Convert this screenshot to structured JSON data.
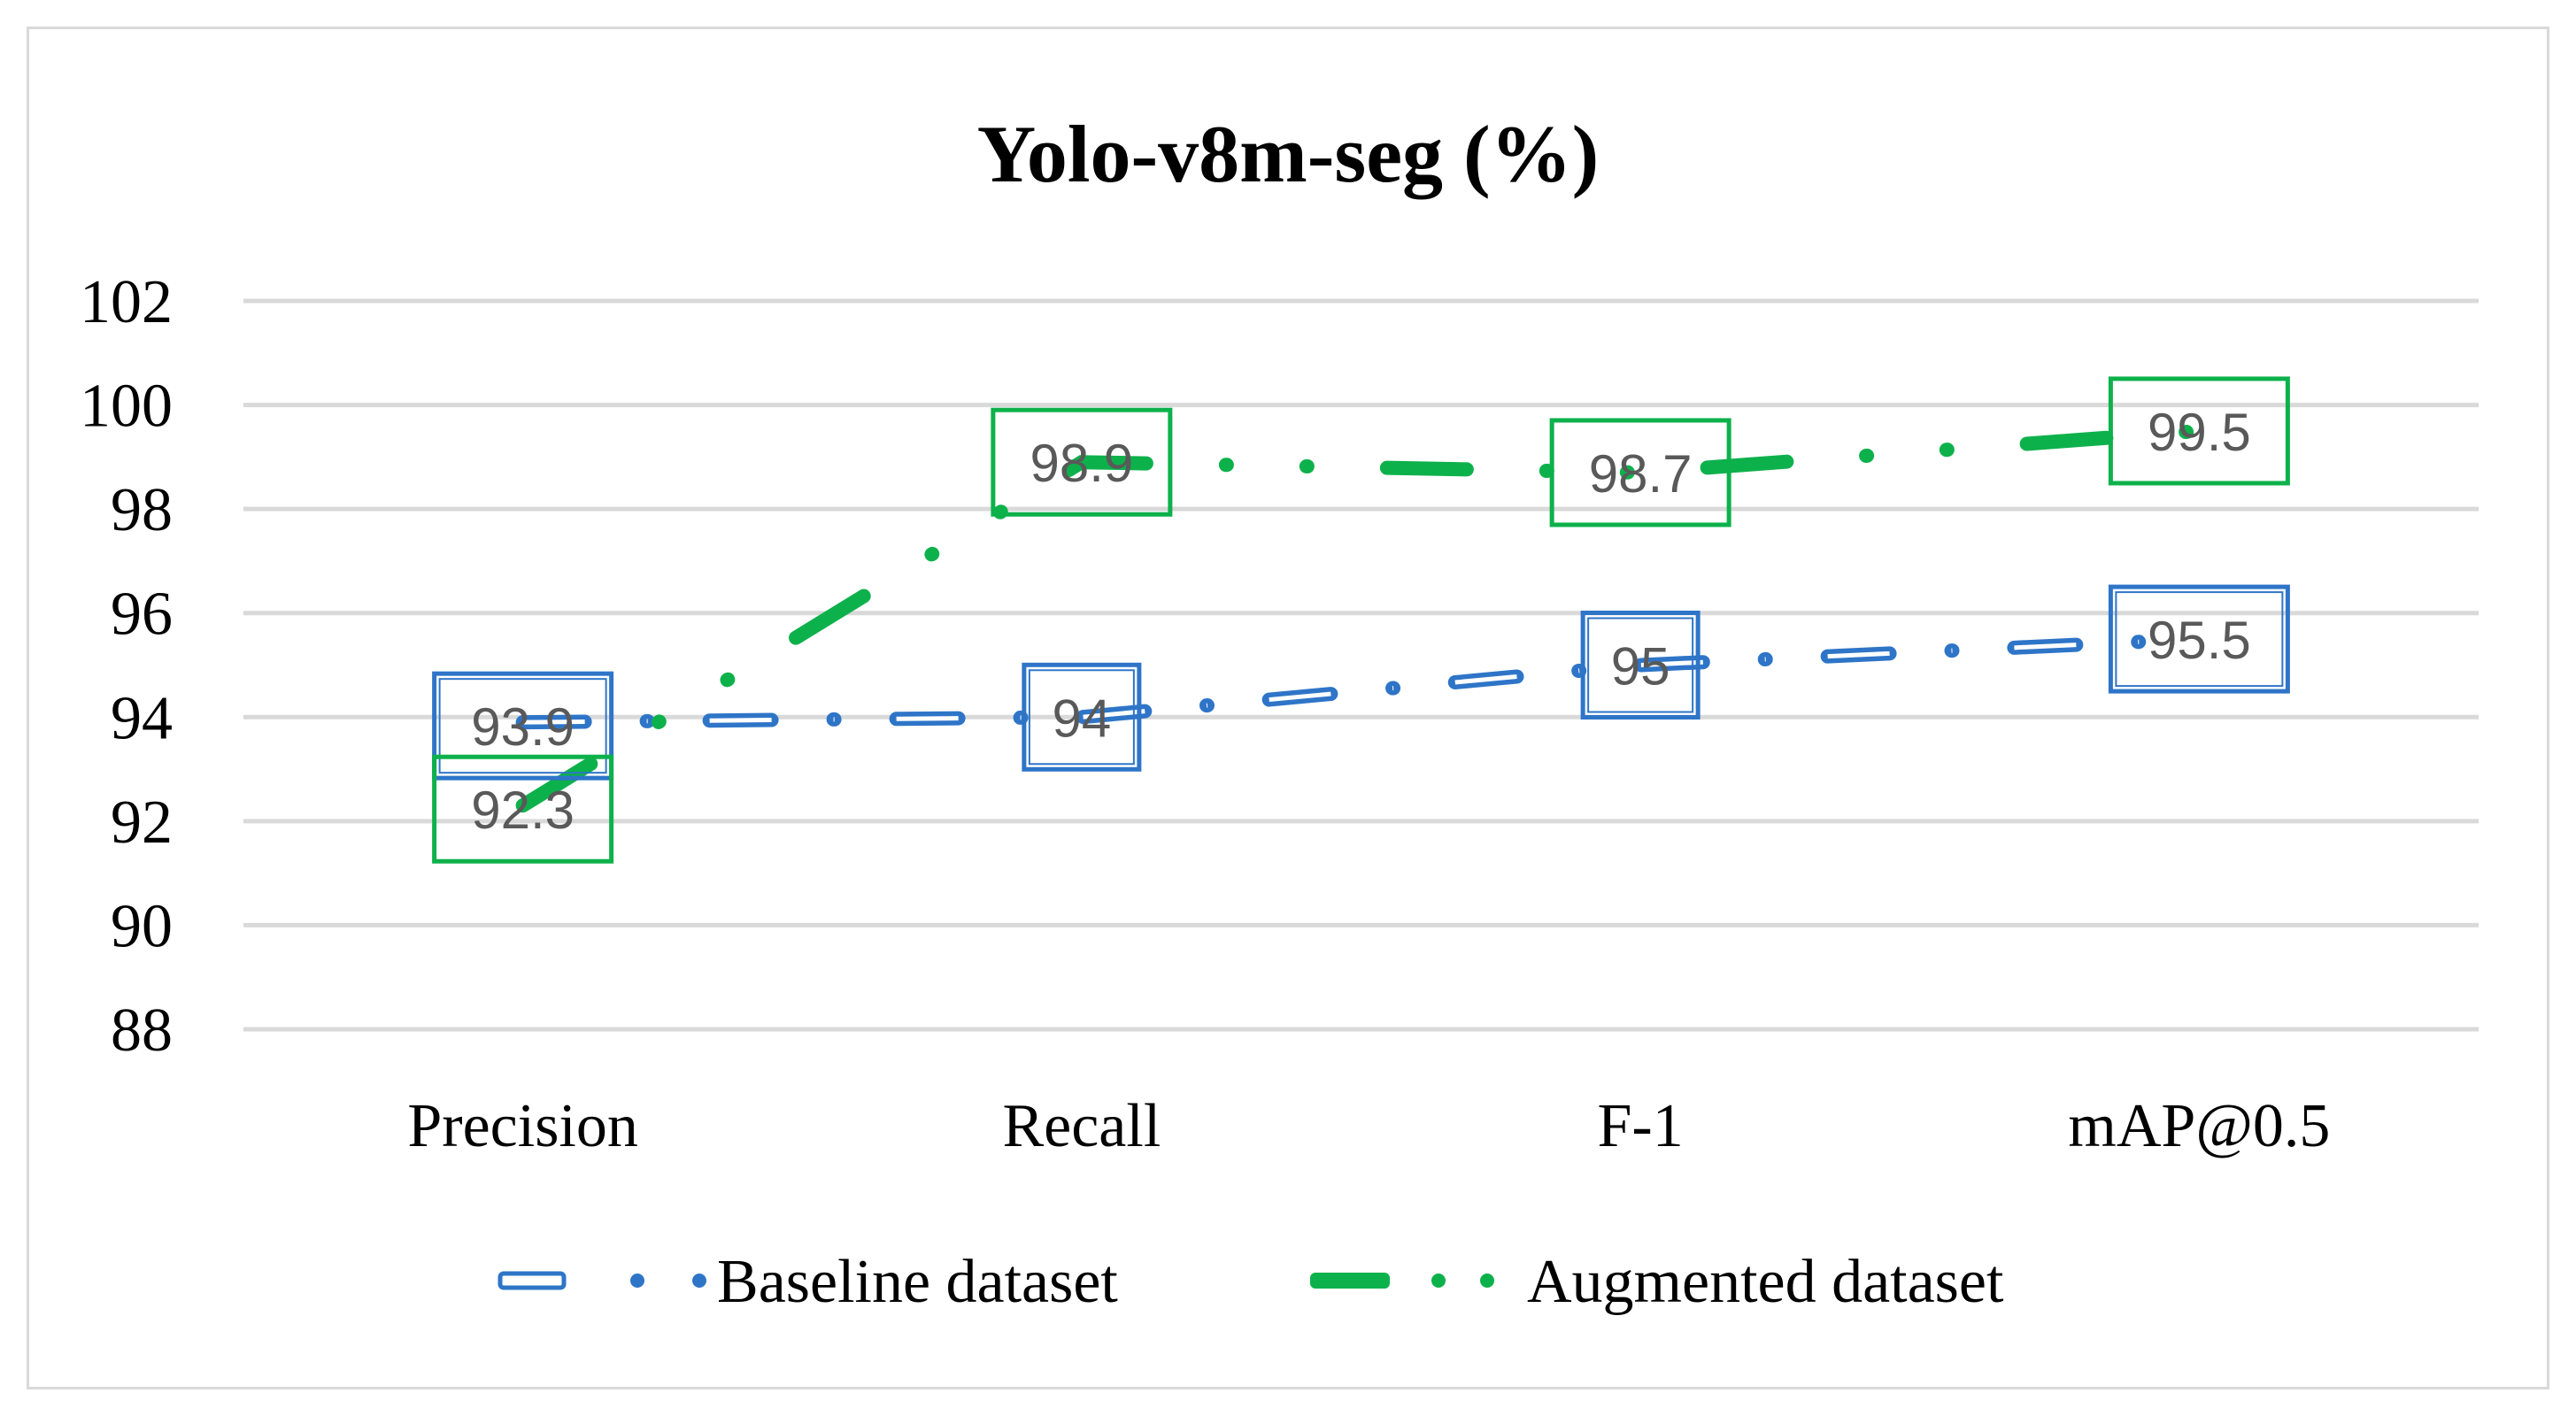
{
  "chart_data": {
    "type": "line",
    "title": "Yolo-v8m-seg (%)",
    "categories": [
      "Precision",
      "Recall",
      "F-1",
      "mAP@0.5"
    ],
    "ylim": [
      88,
      102
    ],
    "yticks": [
      88,
      90,
      92,
      94,
      96,
      98,
      100,
      102
    ],
    "ytick_labels": [
      "88",
      "90",
      "92",
      "94",
      "96",
      "98",
      "100",
      "102"
    ],
    "xlabel": "",
    "ylabel": "",
    "grid": true,
    "legend_position": "bottom",
    "series": [
      {
        "name": "Baseline dataset",
        "values": [
          93.9,
          94,
          95,
          95.5
        ],
        "labels": [
          "93.9",
          "94",
          "95",
          "95.5"
        ],
        "color": "#2e75c8"
      },
      {
        "name": "Augmented dataset",
        "values": [
          92.3,
          98.9,
          98.7,
          99.5
        ],
        "labels": [
          "92.3",
          "98.9",
          "98.7",
          "99.5"
        ],
        "color": "#0db14b"
      }
    ]
  }
}
